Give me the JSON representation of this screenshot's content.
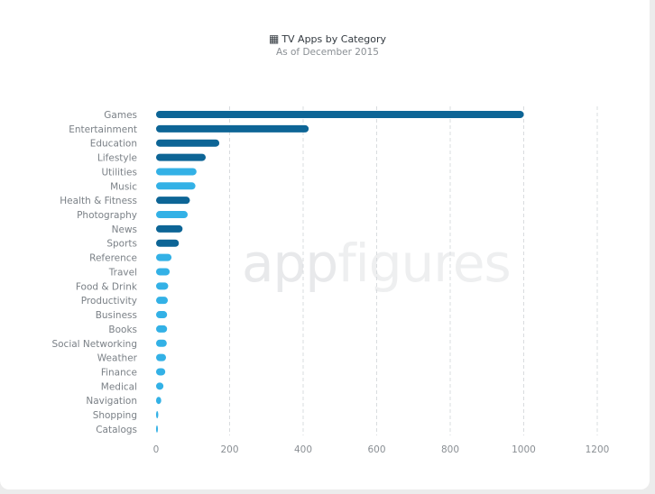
{
  "header": {
    "title": "TV Apps by Category",
    "subtitle": "As of December 2015",
    "icon": "document-icon"
  },
  "watermark": {
    "bold": "app",
    "light": "figures"
  },
  "chart_data": {
    "type": "bar",
    "orientation": "horizontal",
    "title": "TV Apps by Category",
    "subtitle": "As of December 2015",
    "xlabel": "",
    "ylabel": "",
    "xlim": [
      0,
      1200
    ],
    "xticks": [
      0,
      200,
      400,
      600,
      800,
      1000,
      1200
    ],
    "grid": true,
    "categories": [
      "Games",
      "Entertainment",
      "Education",
      "Lifestyle",
      "Utilities",
      "Music",
      "Health & Fitness",
      "Photography",
      "News",
      "Sports",
      "Reference",
      "Travel",
      "Food & Drink",
      "Productivity",
      "Business",
      "Books",
      "Social Networking",
      "Weather",
      "Finance",
      "Medical",
      "Navigation",
      "Shopping",
      "Catalogs"
    ],
    "values": [
      1000,
      415,
      172,
      135,
      110,
      107,
      92,
      86,
      72,
      62,
      42,
      37,
      33,
      32,
      30,
      30,
      29,
      27,
      25,
      20,
      14,
      6,
      1
    ],
    "colors": [
      "#0d6596",
      "#0d6596",
      "#0d6596",
      "#0d6596",
      "#33b1e6",
      "#33b1e6",
      "#0d6596",
      "#33b1e6",
      "#0d6596",
      "#0d6596",
      "#33b1e6",
      "#33b1e6",
      "#33b1e6",
      "#33b1e6",
      "#33b1e6",
      "#33b1e6",
      "#33b1e6",
      "#33b1e6",
      "#33b1e6",
      "#33b1e6",
      "#33b1e6",
      "#33b1e6",
      "#33b1e6"
    ]
  }
}
